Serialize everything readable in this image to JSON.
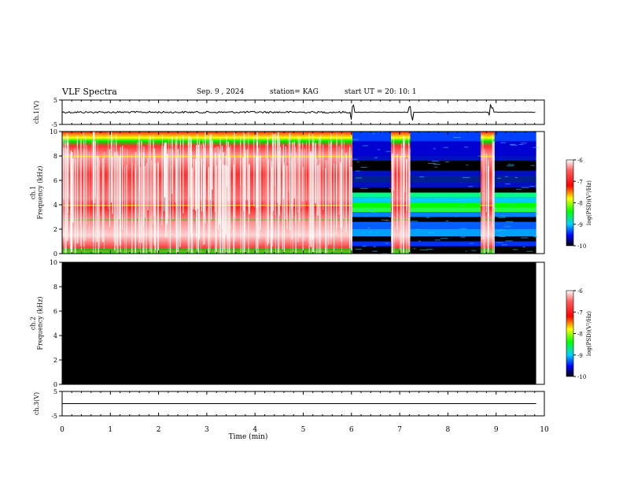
{
  "header": {
    "title": "VLF Spectra",
    "date": "Sep. 9  , 2024",
    "station": "station= KAG",
    "start": "start  UT =   20: 10: 1"
  },
  "chart_data": [
    {
      "id": "ch1-wave",
      "type": "line",
      "ylabel": "ch.1(V)",
      "ylim": [
        -5,
        5
      ],
      "yticks": [
        "5",
        "-5"
      ],
      "xlim": [
        0,
        10
      ],
      "baseline": 0,
      "note": "waveform trace near zero with spikes near 6, 7.2 and 8.9 min"
    },
    {
      "id": "ch1-spec",
      "type": "heatmap",
      "ylabel": "ch.1\nFrequency (kHz)",
      "ylim": [
        0,
        10
      ],
      "yticks": [
        "0",
        "2",
        "4",
        "6",
        "8",
        "10"
      ],
      "xlim": [
        0,
        10
      ],
      "segments": [
        {
          "from": 0,
          "to": 6.02,
          "level": "strong"
        },
        {
          "from": 6.02,
          "to": 6.82,
          "level": "weak"
        },
        {
          "from": 6.82,
          "to": 7.22,
          "level": "strong"
        },
        {
          "from": 7.22,
          "to": 8.68,
          "level": "weak"
        },
        {
          "from": 8.68,
          "to": 8.97,
          "level": "strong"
        },
        {
          "from": 8.97,
          "to": 9.83,
          "level": "weak"
        }
      ],
      "colorbar": {
        "label": "log(PSD)(V²/Hz)",
        "min": -10,
        "max": -6,
        "ticks": [
          "-6",
          "-7",
          "-8",
          "-9",
          "-10"
        ]
      }
    },
    {
      "id": "ch2-spec",
      "type": "heatmap",
      "ylabel": "ch.2\nFrequency (kHz)",
      "ylim": [
        0,
        10
      ],
      "yticks": [
        "0",
        "2",
        "4",
        "6",
        "8",
        "10"
      ],
      "xlim": [
        0,
        10
      ],
      "fill": "#000000",
      "data_extent": [
        0,
        9.83
      ],
      "colorbar": {
        "label": "log(PSD)(V²/Hz)",
        "min": -10,
        "max": -6,
        "ticks": [
          "-6",
          "-7",
          "-8",
          "-9",
          "-10"
        ]
      }
    },
    {
      "id": "ch3-wave",
      "type": "line",
      "ylabel": "ch.3(V)",
      "ylim": [
        -5,
        5
      ],
      "yticks": [
        "5",
        "-5"
      ],
      "xlim": [
        0,
        10
      ],
      "baseline": 0,
      "data_extent": [
        0,
        9.83
      ]
    }
  ],
  "xaxis": {
    "label": "Time  (min)",
    "ticks": [
      "0",
      "1",
      "2",
      "3",
      "4",
      "5",
      "6",
      "7",
      "8",
      "9",
      "10"
    ]
  }
}
